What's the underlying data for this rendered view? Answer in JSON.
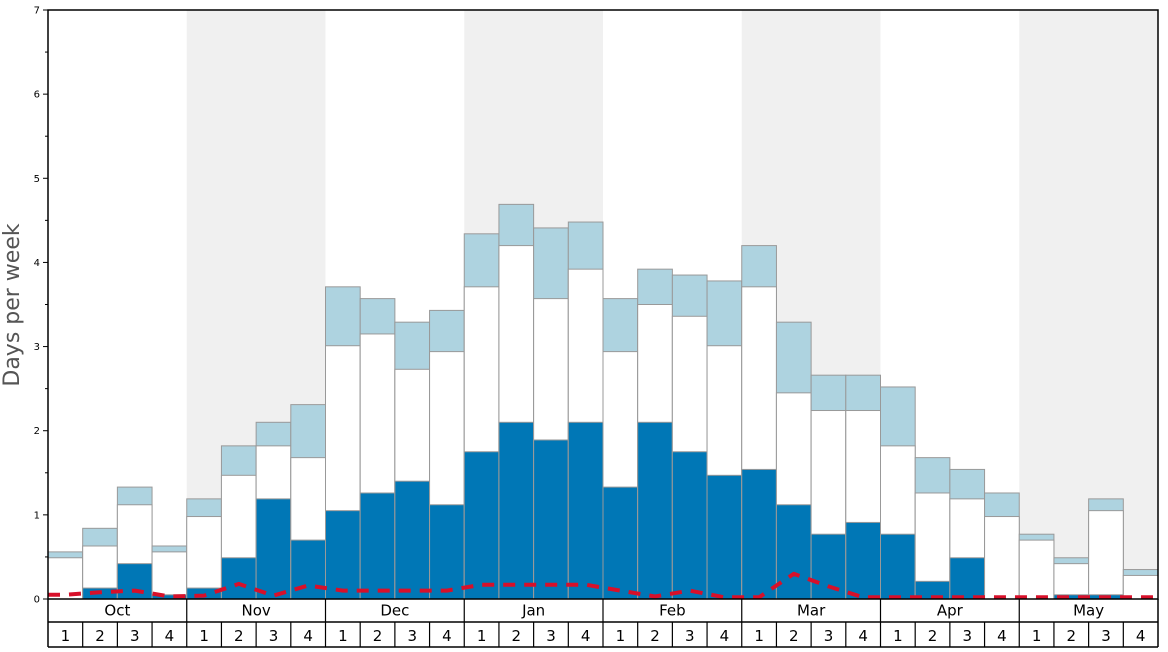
{
  "chart_data": {
    "type": "bar",
    "ylabel": "Days per week",
    "ylim": [
      0,
      7
    ],
    "yticks": [
      "0",
      "1",
      "2",
      "3",
      "4",
      "5",
      "6",
      "7"
    ],
    "months": [
      "Oct",
      "Nov",
      "Dec",
      "Jan",
      "Feb",
      "Mar",
      "Apr",
      "May"
    ],
    "week_labels": [
      "1",
      "2",
      "3",
      "4"
    ],
    "grid": false,
    "legend": "none",
    "colors": {
      "dark": "#0077b6",
      "white": "#ffffff",
      "light": "#aed3e0",
      "dashed_line": "#d7102a",
      "band": "#f0f0f0",
      "bar_edge": "#999999"
    },
    "series": [
      {
        "values": [
          0.0,
          0.13,
          0.42,
          0.05,
          0.13,
          0.49,
          1.19,
          0.7,
          1.05,
          1.26,
          1.4,
          1.12,
          1.75,
          2.1,
          1.89,
          2.1,
          1.33,
          2.1,
          1.75,
          1.47,
          1.54,
          1.12,
          0.77,
          0.91,
          0.77,
          0.21,
          0.49,
          0.0,
          0.0,
          0.05,
          0.05,
          0.0
        ]
      },
      {
        "values": [
          0.49,
          0.63,
          1.12,
          0.56,
          0.98,
          1.47,
          1.82,
          1.68,
          3.01,
          3.15,
          2.73,
          2.94,
          3.71,
          4.2,
          3.57,
          3.92,
          2.94,
          3.5,
          3.36,
          3.01,
          3.71,
          2.45,
          2.24,
          2.24,
          1.82,
          1.26,
          1.19,
          0.98,
          0.7,
          0.42,
          1.05,
          0.28
        ]
      },
      {
        "values": [
          0.56,
          0.84,
          1.33,
          0.63,
          1.19,
          1.82,
          2.1,
          2.31,
          3.71,
          3.57,
          3.29,
          3.43,
          4.34,
          4.69,
          4.41,
          4.48,
          3.57,
          3.92,
          3.85,
          3.78,
          4.2,
          3.29,
          2.66,
          2.66,
          2.52,
          1.68,
          1.54,
          1.26,
          0.77,
          0.49,
          1.19,
          0.35
        ]
      },
      {
        "values": [
          0.05,
          0.08,
          0.1,
          0.03,
          0.04,
          0.18,
          0.04,
          0.16,
          0.1,
          0.1,
          0.1,
          0.1,
          0.17,
          0.17,
          0.17,
          0.17,
          0.1,
          0.03,
          0.1,
          0.02,
          0.02,
          0.3,
          0.15,
          0.02,
          0.02,
          0.02,
          0.02,
          0.02,
          0.02,
          0.02,
          0.02,
          0.02
        ]
      }
    ]
  }
}
